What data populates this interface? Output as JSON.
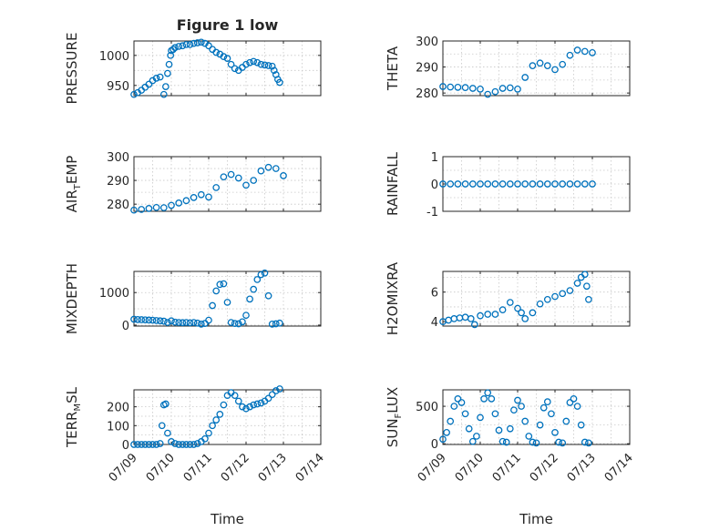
{
  "figure_title": "Figure 1 low",
  "x_label": "Time",
  "x_tick_labels": [
    "07/09",
    "07/10",
    "07/11",
    "07/12",
    "07/13",
    "07/14"
  ],
  "marker_color": "#0072BD",
  "chart_data": [
    {
      "type": "scatter",
      "ylabel": "PRESSURE",
      "ylabel_sub": null,
      "yticks": [
        950,
        1000
      ],
      "ylim": [
        933,
        1024
      ],
      "xlim": [
        0,
        5
      ],
      "grid": true,
      "title": "Figure 1 low",
      "x": [
        0.0,
        0.1,
        0.2,
        0.3,
        0.4,
        0.5,
        0.6,
        0.7,
        0.8,
        0.85,
        0.9,
        0.94,
        0.98,
        1.0,
        1.05,
        1.1,
        1.2,
        1.3,
        1.4,
        1.5,
        1.6,
        1.7,
        1.8,
        1.9,
        2.0,
        2.1,
        2.2,
        2.3,
        2.4,
        2.5,
        2.6,
        2.7,
        2.8,
        2.9,
        3.0,
        3.1,
        3.2,
        3.3,
        3.4,
        3.5,
        3.6,
        3.7,
        3.75,
        3.8,
        3.85,
        3.9
      ],
      "y": [
        935,
        938,
        942,
        947,
        952,
        958,
        962,
        964,
        935,
        948,
        970,
        985,
        1000,
        1008,
        1010,
        1013,
        1015,
        1016,
        1018,
        1018,
        1020,
        1021,
        1022,
        1020,
        1016,
        1010,
        1005,
        1002,
        998,
        995,
        985,
        978,
        975,
        980,
        985,
        988,
        990,
        988,
        985,
        984,
        983,
        982,
        975,
        968,
        960,
        955
      ]
    },
    {
      "type": "scatter",
      "ylabel": "THETA",
      "ylabel_sub": null,
      "yticks": [
        280,
        290,
        300
      ],
      "ylim": [
        279,
        300
      ],
      "xlim": [
        0,
        5
      ],
      "grid": true,
      "x": [
        0.0,
        0.2,
        0.4,
        0.6,
        0.8,
        1.0,
        1.2,
        1.4,
        1.6,
        1.8,
        2.0,
        2.2,
        2.4,
        2.6,
        2.8,
        3.0,
        3.2,
        3.4,
        3.6,
        3.8,
        4.0
      ],
      "y": [
        282.5,
        282.3,
        282.2,
        282.1,
        281.8,
        281.5,
        279.5,
        280.5,
        281.8,
        282.0,
        281.5,
        286.0,
        290.5,
        291.5,
        290.5,
        289.0,
        291.0,
        294.5,
        296.5,
        296.0,
        295.5
      ]
    },
    {
      "type": "scatter",
      "ylabel": "AIR",
      "ylabel_sub": "T",
      "ylabel_suffix": "EMP",
      "yticks": [
        280,
        290,
        300
      ],
      "ylim": [
        277,
        300
      ],
      "xlim": [
        0,
        5
      ],
      "grid": true,
      "x": [
        0.0,
        0.2,
        0.4,
        0.6,
        0.8,
        1.0,
        1.2,
        1.4,
        1.6,
        1.8,
        2.0,
        2.2,
        2.4,
        2.6,
        2.8,
        3.0,
        3.2,
        3.4,
        3.6,
        3.8,
        4.0
      ],
      "y": [
        277.5,
        277.8,
        278.2,
        278.6,
        278.5,
        279.5,
        280.5,
        281.5,
        282.8,
        284.0,
        283.0,
        287.0,
        291.5,
        292.5,
        291.0,
        288.0,
        290.0,
        294.0,
        295.5,
        295.0,
        292.0
      ]
    },
    {
      "type": "scatter",
      "ylabel": "RAINFALL",
      "ylabel_sub": null,
      "yticks": [
        -1,
        0,
        1
      ],
      "ylim": [
        -1,
        1
      ],
      "xlim": [
        0,
        5
      ],
      "grid": true,
      "x": [
        0.0,
        0.2,
        0.4,
        0.6,
        0.8,
        1.0,
        1.2,
        1.4,
        1.6,
        1.8,
        2.0,
        2.2,
        2.4,
        2.6,
        2.8,
        3.0,
        3.2,
        3.4,
        3.6,
        3.8,
        4.0
      ],
      "y": [
        0,
        0,
        0,
        0,
        0,
        0,
        0,
        0,
        0,
        0,
        0,
        0,
        0,
        0,
        0,
        0,
        0,
        0,
        0,
        0,
        0
      ]
    },
    {
      "type": "scatter",
      "ylabel": "MIXDEPTH",
      "ylabel_sub": null,
      "yticks": [
        0,
        1000
      ],
      "ylim": [
        -30,
        1650
      ],
      "xlim": [
        0,
        5
      ],
      "grid": true,
      "x": [
        0.0,
        0.1,
        0.2,
        0.3,
        0.4,
        0.5,
        0.6,
        0.7,
        0.8,
        0.9,
        1.0,
        1.1,
        1.2,
        1.3,
        1.4,
        1.5,
        1.6,
        1.7,
        1.8,
        1.9,
        2.0,
        2.1,
        2.2,
        2.3,
        2.4,
        2.5,
        2.6,
        2.7,
        2.8,
        2.9,
        3.0,
        3.1,
        3.2,
        3.3,
        3.4,
        3.5,
        3.6,
        3.7,
        3.8,
        3.9
      ],
      "y": [
        180,
        170,
        165,
        160,
        155,
        150,
        140,
        130,
        120,
        80,
        130,
        90,
        80,
        75,
        80,
        70,
        80,
        60,
        30,
        50,
        150,
        600,
        1050,
        1250,
        1270,
        700,
        80,
        50,
        40,
        100,
        300,
        800,
        1100,
        1400,
        1550,
        1600,
        900,
        30,
        40,
        60
      ]
    },
    {
      "type": "scatter",
      "ylabel": "H2OMIXRA",
      "ylabel_sub": null,
      "yticks": [
        4,
        6
      ],
      "ylim": [
        3.7,
        7.4
      ],
      "xlim": [
        0,
        5
      ],
      "grid": true,
      "x": [
        0.0,
        0.15,
        0.3,
        0.45,
        0.6,
        0.75,
        0.85,
        1.0,
        1.2,
        1.4,
        1.6,
        1.8,
        2.0,
        2.1,
        2.2,
        2.4,
        2.6,
        2.8,
        3.0,
        3.2,
        3.4,
        3.6,
        3.7,
        3.8,
        3.85,
        3.9
      ],
      "y": [
        4.0,
        4.1,
        4.2,
        4.25,
        4.3,
        4.2,
        3.8,
        4.4,
        4.5,
        4.5,
        4.8,
        5.3,
        4.9,
        4.6,
        4.2,
        4.6,
        5.2,
        5.5,
        5.7,
        5.9,
        6.1,
        6.6,
        7.0,
        7.2,
        6.4,
        5.5
      ]
    },
    {
      "type": "scatter",
      "ylabel": "TERR",
      "ylabel_sub": "M",
      "ylabel_suffix": "SL",
      "yticks": [
        0,
        100,
        200
      ],
      "ylim": [
        0,
        290
      ],
      "xlim": [
        0,
        5
      ],
      "grid": true,
      "x": [
        0.0,
        0.1,
        0.2,
        0.3,
        0.4,
        0.5,
        0.6,
        0.7,
        0.75,
        0.8,
        0.85,
        0.9,
        1.0,
        1.1,
        1.2,
        1.3,
        1.4,
        1.5,
        1.6,
        1.7,
        1.8,
        1.9,
        2.0,
        2.1,
        2.2,
        2.3,
        2.4,
        2.5,
        2.6,
        2.7,
        2.8,
        2.9,
        3.0,
        3.1,
        3.2,
        3.3,
        3.4,
        3.5,
        3.6,
        3.7,
        3.8,
        3.9
      ],
      "y": [
        0,
        0,
        0,
        0,
        0,
        0,
        0,
        5,
        100,
        210,
        215,
        60,
        15,
        5,
        0,
        0,
        0,
        0,
        0,
        5,
        15,
        30,
        60,
        100,
        130,
        160,
        210,
        260,
        275,
        260,
        230,
        200,
        190,
        200,
        210,
        215,
        220,
        230,
        245,
        265,
        285,
        295
      ]
    },
    {
      "type": "scatter",
      "ylabel": "SUN",
      "ylabel_sub": "F",
      "ylabel_suffix": "LUX",
      "yticks": [
        0,
        500
      ],
      "ylim": [
        -10,
        720
      ],
      "xlim": [
        0,
        5
      ],
      "grid": true,
      "x": [
        0.0,
        0.1,
        0.2,
        0.3,
        0.4,
        0.5,
        0.6,
        0.7,
        0.8,
        0.9,
        1.0,
        1.1,
        1.2,
        1.3,
        1.4,
        1.5,
        1.6,
        1.7,
        1.8,
        1.9,
        2.0,
        2.1,
        2.2,
        2.3,
        2.4,
        2.5,
        2.6,
        2.7,
        2.8,
        2.9,
        3.0,
        3.1,
        3.2,
        3.3,
        3.4,
        3.5,
        3.6,
        3.7,
        3.8,
        3.9
      ],
      "y": [
        60,
        150,
        300,
        500,
        600,
        550,
        400,
        200,
        30,
        100,
        350,
        600,
        680,
        600,
        400,
        180,
        30,
        20,
        200,
        450,
        580,
        500,
        300,
        100,
        20,
        10,
        250,
        480,
        560,
        400,
        150,
        20,
        10,
        300,
        550,
        600,
        500,
        250,
        20,
        10
      ]
    }
  ]
}
